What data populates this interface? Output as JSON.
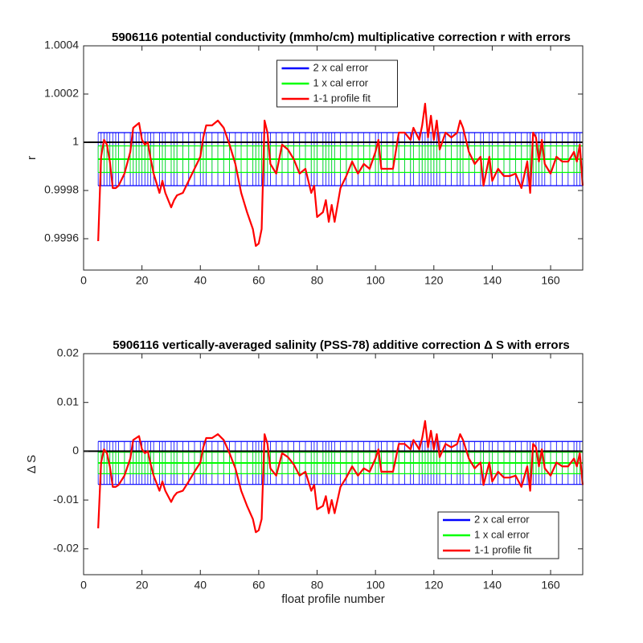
{
  "chart_data": [
    {
      "type": "errorbar-line",
      "title": "5906116 potential conductivity (mmho/cm) multiplicative correction r with errors",
      "ylabel": "r",
      "x": [
        5,
        6,
        7,
        8,
        9,
        10,
        11,
        12,
        14,
        16,
        17,
        18,
        19,
        20,
        21,
        22,
        23,
        24,
        26,
        27,
        28,
        30,
        31,
        32,
        34,
        36,
        38,
        40,
        41,
        42,
        44,
        46,
        48,
        50,
        52,
        54,
        56,
        58,
        59,
        60,
        61,
        62,
        63,
        64,
        66,
        68,
        70,
        72,
        74,
        76,
        78,
        79,
        80,
        82,
        83,
        84,
        85,
        86,
        88,
        90,
        92,
        94,
        96,
        98,
        100,
        101,
        102,
        104,
        106,
        108,
        110,
        112,
        113,
        115,
        116,
        117,
        118,
        119,
        120,
        121,
        122,
        124,
        126,
        128,
        129,
        130,
        132,
        134,
        136,
        137,
        139,
        140,
        142,
        144,
        146,
        148,
        150,
        152,
        153,
        154,
        155,
        156,
        157,
        158,
        160,
        162,
        164,
        166,
        168,
        169,
        170,
        171
      ],
      "reference": 1,
      "series": [
        {
          "name": "2 x cal error",
          "color": "#0000ff",
          "value": 0.99993,
          "error": 0.00011
        },
        {
          "name": "1 x cal error",
          "color": "#00ff00",
          "value": 0.99993,
          "error": 5.5e-05
        },
        {
          "name": "1-1 profile fit",
          "color": "#ff0000",
          "values": [
            0.99959,
            0.99994,
            1.00001,
            0.99999,
            0.99992,
            0.99981,
            0.99981,
            0.99982,
            0.99987,
            0.99996,
            1.00006,
            1.00007,
            1.00008,
            1.00001,
            0.99999,
            1.0,
            0.99993,
            0.99987,
            0.99979,
            0.99984,
            0.99979,
            0.99973,
            0.99976,
            0.99978,
            0.99979,
            0.99984,
            0.99989,
            0.99994,
            1.00002,
            1.00007,
            1.00007,
            1.00009,
            1.00006,
            0.99999,
            0.99991,
            0.99979,
            0.99971,
            0.99964,
            0.99957,
            0.99958,
            0.99964,
            1.00009,
            1.00004,
            0.99991,
            0.99987,
            0.99999,
            0.99997,
            0.99993,
            0.99987,
            0.99989,
            0.99979,
            0.99982,
            0.99969,
            0.99971,
            0.99976,
            0.99967,
            0.99974,
            0.99967,
            0.99981,
            0.99986,
            0.99992,
            0.99987,
            0.99991,
            0.99989,
            0.99996,
            1.00001,
            0.99989,
            0.99989,
            0.99989,
            1.00004,
            1.00004,
            1.00001,
            1.00006,
            1.00001,
            1.00007,
            1.00016,
            1.00002,
            1.00011,
            1.00001,
            1.00009,
            0.99997,
            1.00004,
            1.00002,
            1.00004,
            1.00009,
            1.00006,
            0.99996,
            0.99991,
            0.99994,
            0.99982,
            0.99994,
            0.99984,
            0.99989,
            0.99986,
            0.99986,
            0.99987,
            0.99981,
            0.99992,
            0.99979,
            1.00004,
            1.00002,
            0.99992,
            1.00001,
            0.99991,
            0.99987,
            0.99994,
            0.99992,
            0.99992,
            0.99996,
            0.99992,
            0.99999,
            0.99982
          ]
        }
      ],
      "xlim": [
        0,
        171
      ],
      "xticks": [
        0,
        20,
        40,
        60,
        80,
        100,
        120,
        140,
        160
      ],
      "ylim": [
        0.99947,
        1.0004
      ],
      "yticks": [
        0.9996,
        0.9998,
        1,
        1.0002,
        1.0004
      ],
      "legend": "north"
    },
    {
      "type": "errorbar-line",
      "title": "5906116 vertically-averaged salinity (PSS-78) additive correction Δ S with errors",
      "ylabel": "Δ S",
      "xlabel": "float profile number",
      "x": [
        5,
        6,
        7,
        8,
        9,
        10,
        11,
        12,
        14,
        16,
        17,
        18,
        19,
        20,
        21,
        22,
        23,
        24,
        26,
        27,
        28,
        30,
        31,
        32,
        34,
        36,
        38,
        40,
        41,
        42,
        44,
        46,
        48,
        50,
        52,
        54,
        56,
        58,
        59,
        60,
        61,
        62,
        63,
        64,
        66,
        68,
        70,
        72,
        74,
        76,
        78,
        79,
        80,
        82,
        83,
        84,
        85,
        86,
        88,
        90,
        92,
        94,
        96,
        98,
        100,
        101,
        102,
        104,
        106,
        108,
        110,
        112,
        113,
        115,
        116,
        117,
        118,
        119,
        120,
        121,
        122,
        124,
        126,
        128,
        129,
        130,
        132,
        134,
        136,
        137,
        139,
        140,
        142,
        144,
        146,
        148,
        150,
        152,
        153,
        154,
        155,
        156,
        157,
        158,
        160,
        162,
        164,
        166,
        168,
        169,
        170,
        171
      ],
      "reference": 0,
      "series": [
        {
          "name": "2 x cal error",
          "color": "#0000ff",
          "value": -0.0024,
          "error": 0.0044
        },
        {
          "name": "1 x cal error",
          "color": "#00ff00",
          "value": -0.0024,
          "error": 0.0022
        },
        {
          "name": "1-1 profile fit",
          "color": "#ff0000",
          "values": [
            -0.0158,
            -0.0023,
            0.0004,
            -0.0004,
            -0.0031,
            -0.0073,
            -0.0073,
            -0.0069,
            -0.005,
            -0.0015,
            0.0023,
            0.0027,
            0.0031,
            0.0004,
            -0.0004,
            0,
            -0.0027,
            -0.005,
            -0.0081,
            -0.0062,
            -0.0081,
            -0.0104,
            -0.0092,
            -0.0085,
            -0.0081,
            -0.0062,
            -0.0042,
            -0.0023,
            0.0008,
            0.0027,
            0.0027,
            0.0035,
            0.0023,
            -0.0004,
            -0.0035,
            -0.0081,
            -0.0112,
            -0.0139,
            -0.0166,
            -0.0162,
            -0.0139,
            0.0035,
            0.0015,
            -0.0035,
            -0.005,
            -0.0004,
            -0.0012,
            -0.0027,
            -0.005,
            -0.0042,
            -0.0081,
            -0.0069,
            -0.0119,
            -0.0112,
            -0.0092,
            -0.0127,
            -0.01,
            -0.0127,
            -0.0073,
            -0.0054,
            -0.0031,
            -0.005,
            -0.0035,
            -0.0042,
            -0.0015,
            0.0004,
            -0.0042,
            -0.0042,
            -0.0042,
            0.0015,
            0.0015,
            0.0004,
            0.0023,
            0.0004,
            0.0027,
            0.0062,
            0.0008,
            0.0042,
            0.0004,
            0.0035,
            -0.0012,
            0.0015,
            0.0008,
            0.0015,
            0.0035,
            0.0023,
            -0.0015,
            -0.0035,
            -0.0023,
            -0.0069,
            -0.0023,
            -0.0062,
            -0.0042,
            -0.0054,
            -0.0054,
            -0.005,
            -0.0073,
            -0.0031,
            -0.0081,
            0.0015,
            0.0008,
            -0.0031,
            0.0004,
            -0.0035,
            -0.005,
            -0.0023,
            -0.0031,
            -0.0031,
            -0.0015,
            -0.0031,
            -0.0004,
            -0.0069
          ]
        }
      ],
      "xlim": [
        0,
        171
      ],
      "xticks": [
        0,
        20,
        40,
        60,
        80,
        100,
        120,
        140,
        160
      ],
      "ylim": [
        -0.0253,
        0.02
      ],
      "yticks": [
        -0.02,
        -0.01,
        0,
        0.01,
        0.02
      ],
      "legend": "southeast"
    }
  ]
}
